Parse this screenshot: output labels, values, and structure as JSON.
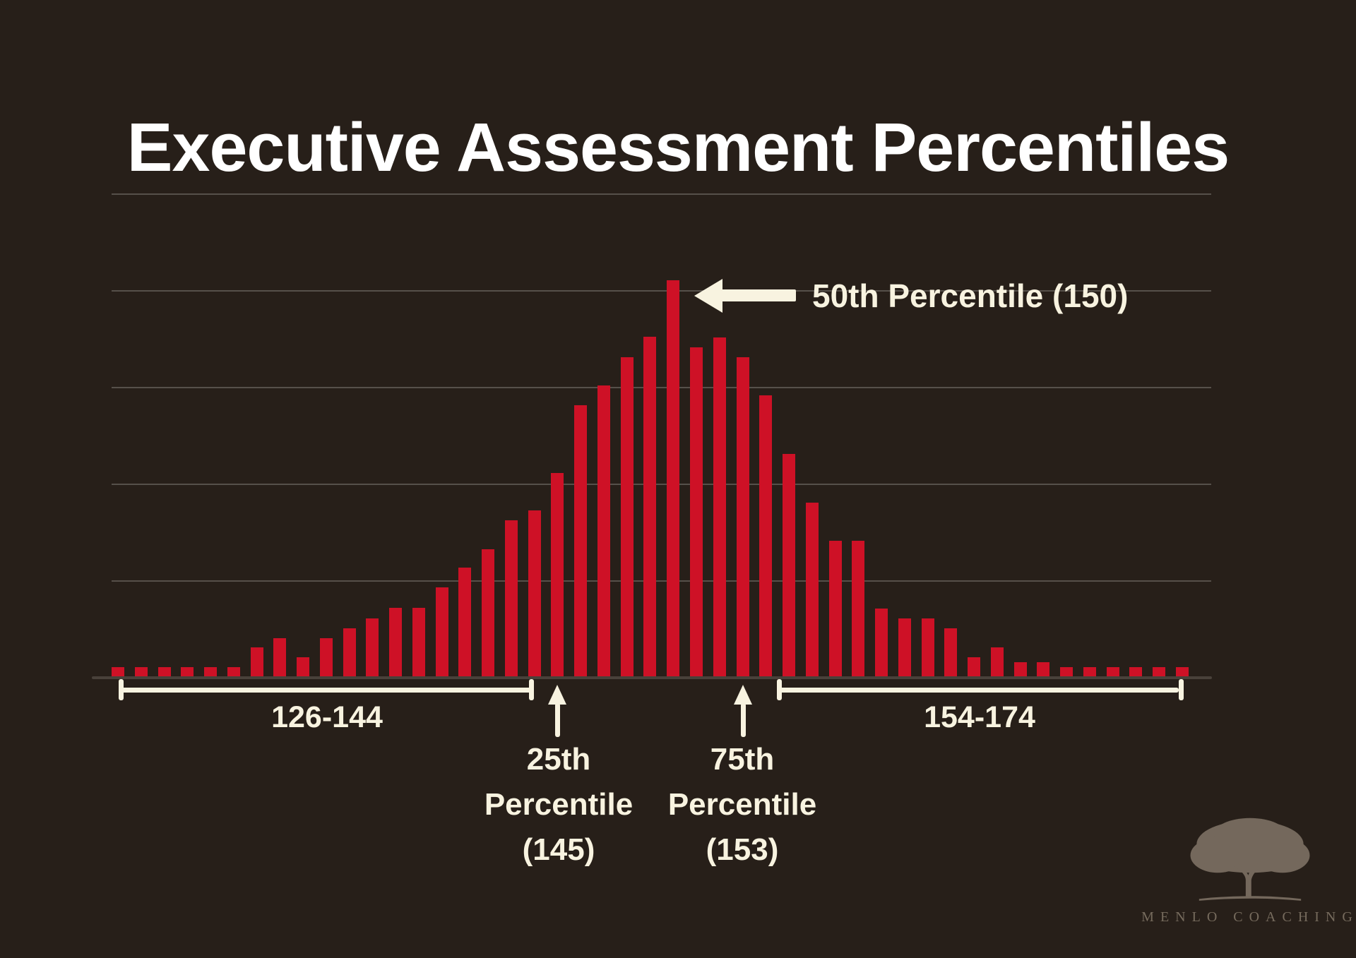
{
  "title": "Executive Assessment Percentiles",
  "colors": {
    "background": "#271f19",
    "bar_red": "#ce1126",
    "cream": "#f8f3e0",
    "title_white": "#ffffff",
    "gridline": "#56504a",
    "axis_line": "#49413a",
    "logo_gray": "#85796b"
  },
  "annotations": {
    "median_label": "50th Percentile (150)",
    "p25": {
      "line1": "25th",
      "line2": "Percentile",
      "line3": "(145)"
    },
    "p75": {
      "line1": "75th",
      "line2": "Percentile",
      "line3": "(153)"
    },
    "left_range_label": "126-144",
    "right_range_label": "154-174"
  },
  "logo": {
    "icon": "oak-tree",
    "text": "MENLO COACHING"
  },
  "chart_data": {
    "type": "bar",
    "title": "Executive Assessment Percentiles",
    "x": [
      126,
      127,
      128,
      129,
      130,
      131,
      132,
      133,
      134,
      135,
      136,
      137,
      138,
      139,
      140,
      141,
      142,
      143,
      144,
      145,
      146,
      147,
      148,
      149,
      150,
      151,
      152,
      153,
      154,
      155,
      156,
      157,
      158,
      159,
      160,
      161,
      162,
      163,
      164,
      165,
      166,
      167,
      168,
      169,
      170,
      171,
      172
    ],
    "values": [
      15,
      15,
      15,
      15,
      15,
      15,
      43,
      56,
      29,
      56,
      70,
      84,
      99,
      99,
      128,
      156,
      182,
      223,
      237,
      290,
      386,
      414,
      454,
      483,
      563,
      468,
      482,
      454,
      400,
      317,
      248,
      194,
      194,
      98,
      84,
      84,
      70,
      29,
      43,
      22,
      22,
      15,
      15,
      15,
      15,
      15,
      15
    ],
    "value_unit": "relative frequency (bar height in px; no value axis shown in figure)",
    "xlabel": "",
    "ylabel": "",
    "grid": "horizontal gridlines, no tick labels",
    "legend": "none",
    "annotations": {
      "median": {
        "label": "50th Percentile (150)",
        "score": 150
      },
      "p25": {
        "label": "25th Percentile (145)",
        "score": 145
      },
      "p75": {
        "label": "75th Percentile (153)",
        "score": 153
      },
      "left_bracket_range": "126-144",
      "right_bracket_range": "154-174"
    }
  }
}
